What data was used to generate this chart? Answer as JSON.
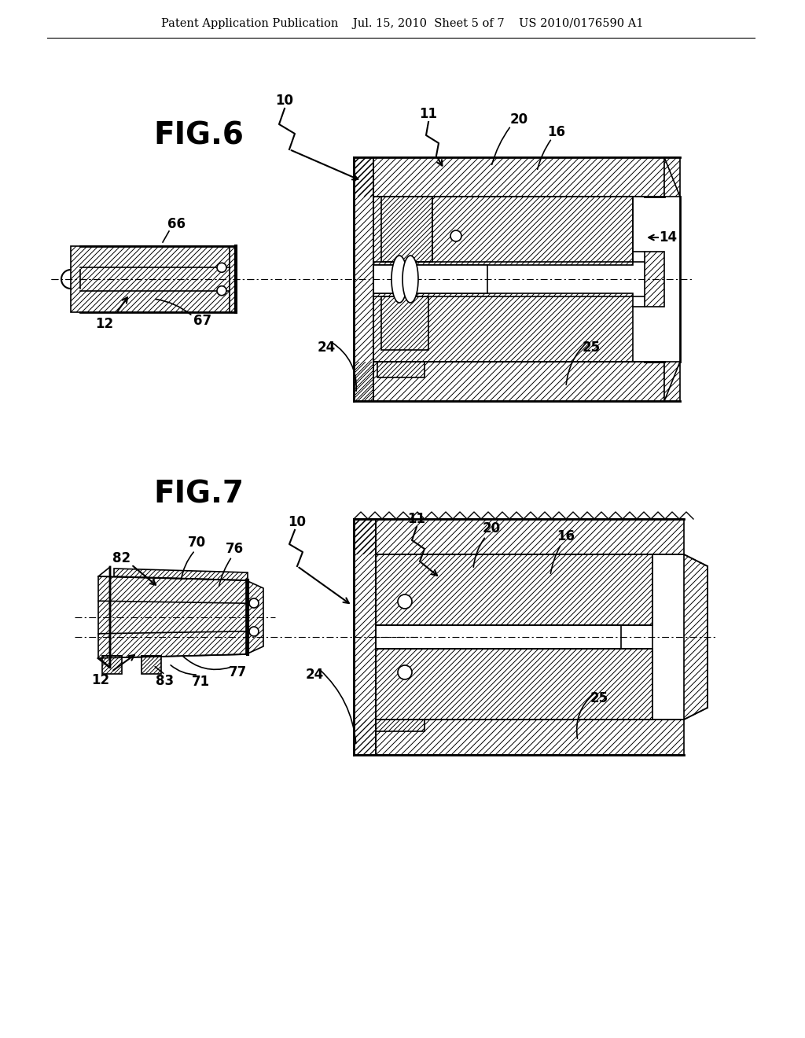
{
  "bg_color": "#ffffff",
  "line_color": "#000000",
  "header_text": "Patent Application Publication    Jul. 15, 2010  Sheet 5 of 7    US 2010/0176590 A1",
  "fig6_label": "FIG.6",
  "fig7_label": "FIG.7",
  "header_fontsize": 10.5,
  "fig_label_fontsize": 28,
  "annotation_fontsize": 12
}
